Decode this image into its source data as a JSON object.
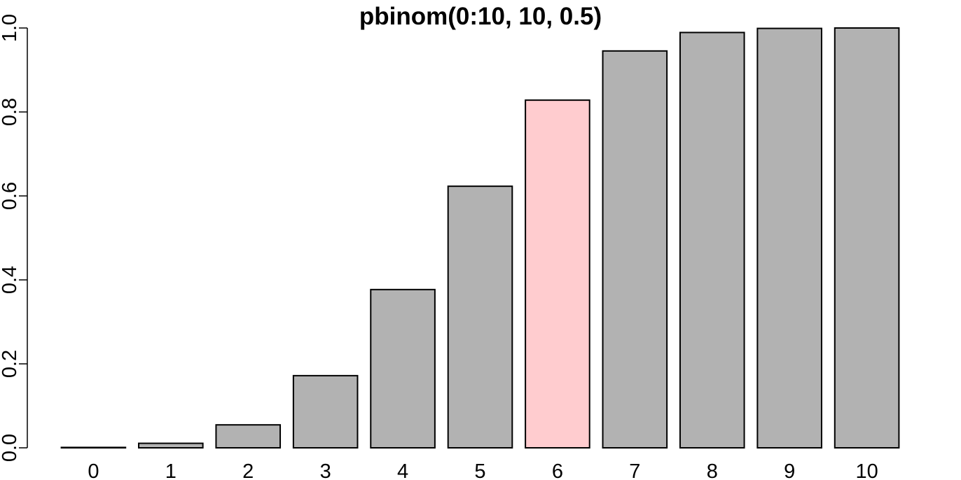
{
  "chart_data": {
    "type": "bar",
    "title": "pbinom(0:10, 10, 0.5)",
    "xlabel": "",
    "ylabel": "",
    "categories": [
      "0",
      "1",
      "2",
      "3",
      "4",
      "5",
      "6",
      "7",
      "8",
      "9",
      "10"
    ],
    "values": [
      0.000977,
      0.010742,
      0.054688,
      0.171875,
      0.376953,
      0.623047,
      0.828125,
      0.945312,
      0.989258,
      0.999023,
      1.0
    ],
    "highlight_index": 6,
    "ylim": [
      0,
      1
    ],
    "yticks": [
      0,
      0.2,
      0.4,
      0.6,
      0.8,
      1.0
    ],
    "ytick_labels": [
      "0.0",
      "0.2",
      "0.4",
      "0.6",
      "0.8",
      "1.0"
    ],
    "grid": false,
    "legend": "none",
    "colors": {
      "bar_fill": "#b2b2b2",
      "highlight_fill": "#ffcccf",
      "stroke": "#000000"
    }
  }
}
